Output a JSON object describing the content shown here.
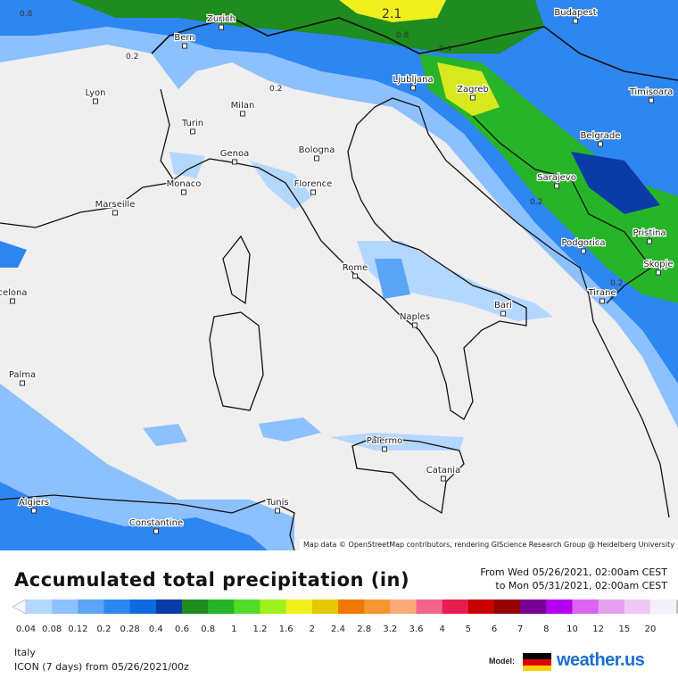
{
  "map": {
    "cities": [
      "Zurich",
      "Bern",
      "Budapest",
      "Lyon",
      "Milan",
      "Ljubljana",
      "Zagreb",
      "Timisoara",
      "Turin",
      "Belgrade",
      "Genoa",
      "Bologna",
      "Monaco",
      "Florence",
      "Sarajevo",
      "Marseille",
      "Podgorica",
      "Pristina",
      "Rome",
      "Skopje",
      "celona",
      "Tirane",
      "Bari",
      "Naples",
      "Palma",
      "Palermo",
      "Catania",
      "Algiers",
      "Tunis",
      "Constantine"
    ],
    "value_labels": [
      "2.1",
      "0.8",
      "0.2",
      "0.2",
      "0.4",
      "0.2",
      "0.8",
      "0.2"
    ],
    "attribution": "Map data © OpenStreetMap contributors, rendering GIScience Research Group @ Heidelberg University"
  },
  "header": {
    "title": "Accumulated total precipitation (in)",
    "from": "From Wed 05/26/2021, 02:00am CEST",
    "to": "to Mon 05/31/2021, 02:00am CEST"
  },
  "legend": {
    "ticks": [
      "0.04",
      "0.08",
      "0.12",
      "0.2",
      "0.28",
      "0.4",
      "0.6",
      "0.8",
      "1",
      "1.2",
      "1.6",
      "2",
      "2.4",
      "2.8",
      "3.2",
      "3.6",
      "4",
      "5",
      "6",
      "7",
      "8",
      "10",
      "12",
      "15",
      "20"
    ],
    "colors": [
      "#b4d7ff",
      "#8cc0ff",
      "#5aa5f5",
      "#2e86f0",
      "#0d6ae0",
      "#0a3ca8",
      "#1e8c1e",
      "#28b428",
      "#50dc28",
      "#a0f01e",
      "#f0f01e",
      "#e6c800",
      "#f07800",
      "#f59632",
      "#faaa78",
      "#f5648c",
      "#e61e50",
      "#c80000",
      "#960000",
      "#780096",
      "#b400f0",
      "#dc64f0",
      "#e6a0f0",
      "#f0c8f5",
      "#f5f0fa"
    ]
  },
  "footer": {
    "region": "Italy",
    "model_run": "ICON (7 days) from 05/26/2021/00z",
    "model_label": "Model:",
    "brand": "weather.us"
  }
}
